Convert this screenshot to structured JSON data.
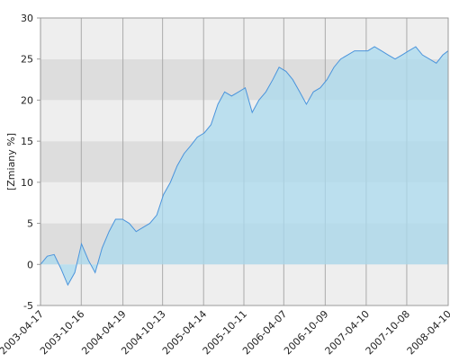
{
  "chart_data": {
    "type": "area",
    "y_label": "[Zmiany %]",
    "x": [
      "2003-04-17",
      "2003-05-17",
      "2003-06-17",
      "2003-07-17",
      "2003-08-17",
      "2003-09-17",
      "2003-10-17",
      "2003-11-17",
      "2003-12-17",
      "2004-01-17",
      "2004-02-17",
      "2004-03-17",
      "2004-04-17",
      "2004-05-17",
      "2004-06-17",
      "2004-07-17",
      "2004-08-17",
      "2004-09-17",
      "2004-10-17",
      "2004-11-17",
      "2004-12-17",
      "2005-01-17",
      "2005-02-17",
      "2005-03-17",
      "2005-04-17",
      "2005-05-17",
      "2005-06-17",
      "2005-07-17",
      "2005-08-17",
      "2005-09-17",
      "2005-10-17",
      "2005-11-17",
      "2005-12-17",
      "2006-01-17",
      "2006-02-17",
      "2006-03-17",
      "2006-04-17",
      "2006-05-17",
      "2006-06-17",
      "2006-07-17",
      "2006-08-17",
      "2006-09-17",
      "2006-10-17",
      "2006-11-17",
      "2006-12-17",
      "2007-01-17",
      "2007-02-17",
      "2007-03-17",
      "2007-04-17",
      "2007-05-17",
      "2007-06-17",
      "2007-07-17",
      "2007-08-17",
      "2007-09-17",
      "2007-10-17",
      "2007-11-17",
      "2007-12-17",
      "2008-01-17",
      "2008-02-17",
      "2008-03-17",
      "2008-04-10"
    ],
    "series": [
      {
        "color": "#4a94dc",
        "fill": "#a9d9ee",
        "values": [
          0,
          1,
          1.2,
          -0.5,
          -2.5,
          -1,
          2.5,
          0.5,
          -1,
          2,
          4,
          5.5,
          5.5,
          5,
          4,
          4.5,
          5,
          6,
          8.5,
          10,
          12,
          13.5,
          14.5,
          15.5,
          16,
          17,
          19.5,
          21,
          20.5,
          21,
          21.5,
          18.5,
          20,
          21,
          22.5,
          24,
          23.5,
          22.5,
          21,
          19.5,
          21,
          21.5,
          22.5,
          24,
          25,
          25.5,
          26,
          26,
          26,
          26.5,
          26,
          25.5,
          25,
          25.5,
          26,
          26.5,
          25.5,
          25,
          24.5,
          25.5,
          26
        ]
      }
    ],
    "xlim": [
      "2003-04-17",
      "2008-04-10"
    ],
    "xticks": [
      "2003-04-17",
      "2003-10-16",
      "2004-04-19",
      "2004-10-13",
      "2005-04-14",
      "2005-10-11",
      "2006-04-07",
      "2006-10-09",
      "2007-04-10",
      "2007-10-08",
      "2008-04-10"
    ],
    "ylim": [
      -5,
      30
    ],
    "yticks": [
      -5,
      0,
      5,
      10,
      15,
      20,
      25,
      30
    ],
    "bands": [
      "#eeeeee",
      "#dddddd"
    ],
    "grid": true
  }
}
